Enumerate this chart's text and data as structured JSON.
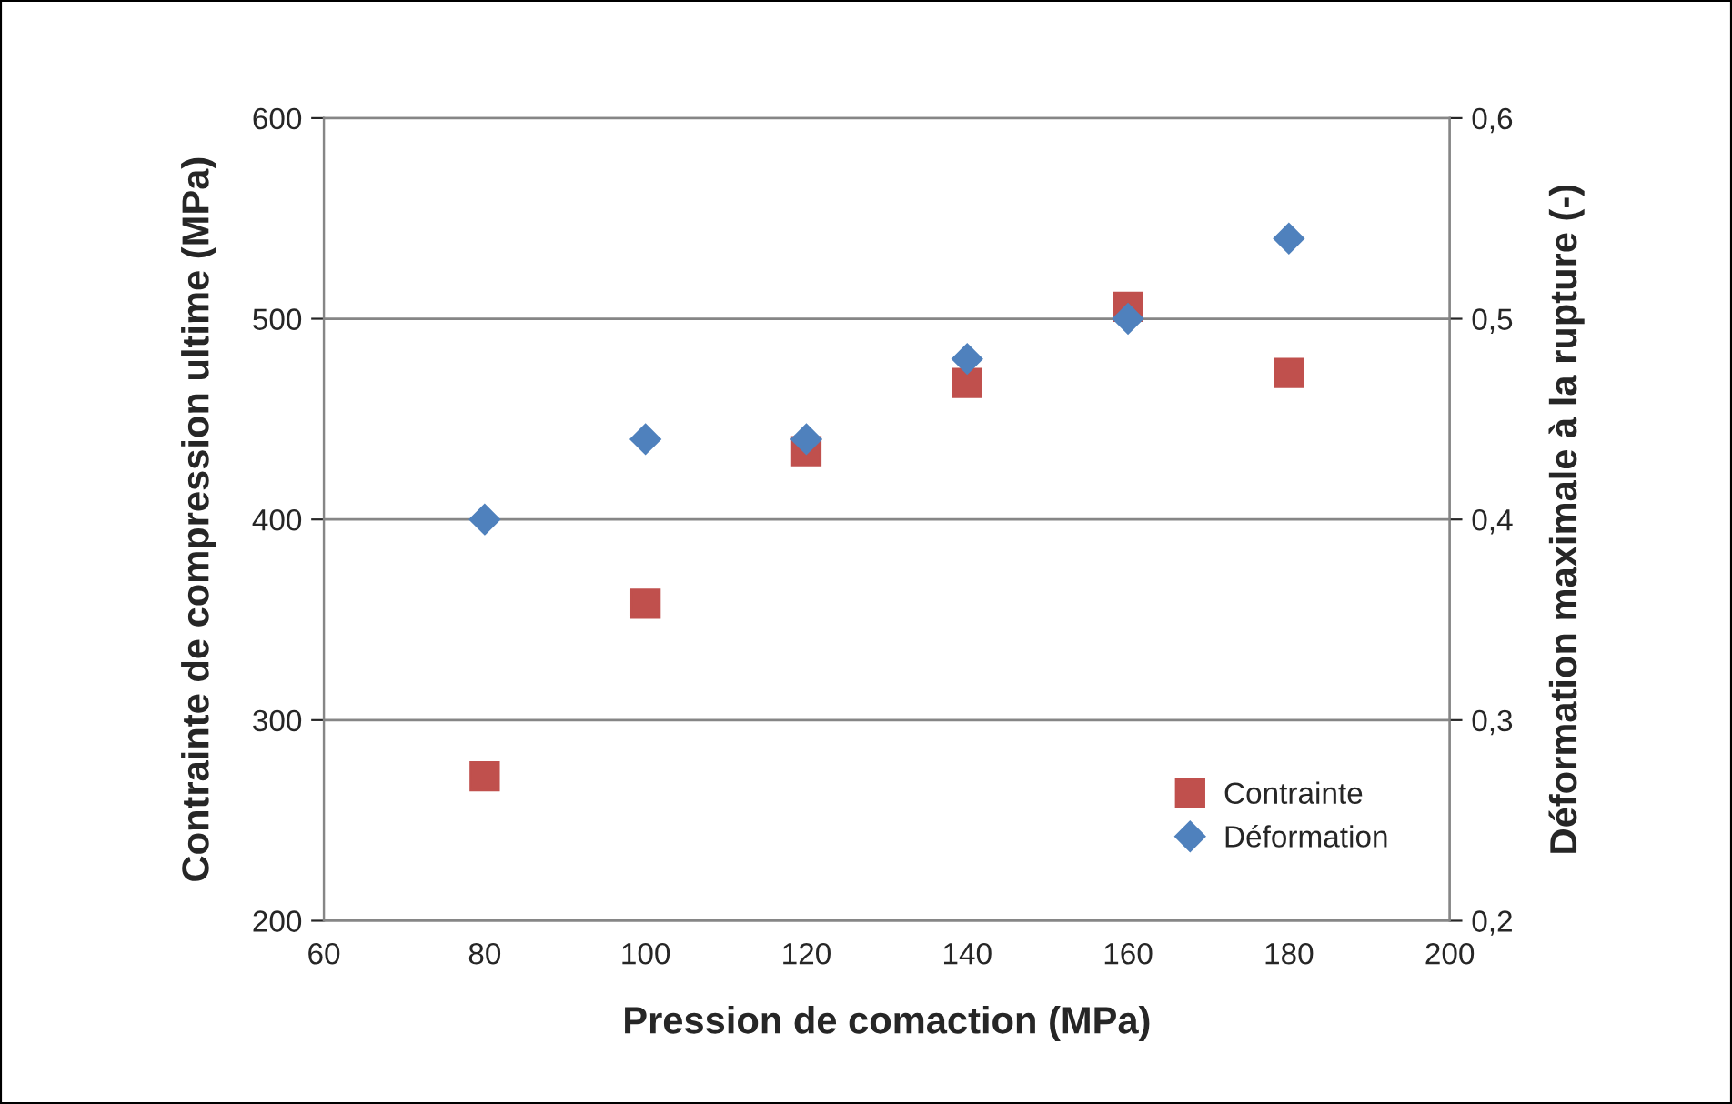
{
  "chart_data": {
    "type": "scatter",
    "xlabel": "Pression de comaction (MPa)",
    "ylabel": "Contrainte de compression ultime (MPa)",
    "y2label": "Déformation maximale à la rupture (-)",
    "x": [
      80,
      100,
      120,
      140,
      160,
      180
    ],
    "series": [
      {
        "name": "Contrainte",
        "color": "#c0504d",
        "marker": "square",
        "values": [
          272,
          358,
          434,
          468,
          506,
          473
        ]
      },
      {
        "name": "Déformation",
        "color": "#4f81bd",
        "marker": "diamond",
        "axis": "y2",
        "values": [
          0.4,
          0.44,
          0.44,
          0.48,
          0.5,
          0.54
        ]
      }
    ],
    "xlim": [
      60,
      200
    ],
    "xticks": [
      60,
      80,
      100,
      120,
      140,
      160,
      180,
      200
    ],
    "ylim": [
      200,
      600
    ],
    "yticks": [
      200,
      300,
      400,
      500,
      600
    ],
    "y2lim": [
      0.2,
      0.6
    ],
    "y2ticks": [
      {
        "value": 0.2,
        "label": "0,2"
      },
      {
        "value": 0.3,
        "label": "0,3"
      },
      {
        "value": 0.4,
        "label": "0,4"
      },
      {
        "value": 0.5,
        "label": "0,5"
      },
      {
        "value": 0.6,
        "label": "0,6"
      }
    ],
    "grid": "y",
    "legend": "bottom right"
  }
}
